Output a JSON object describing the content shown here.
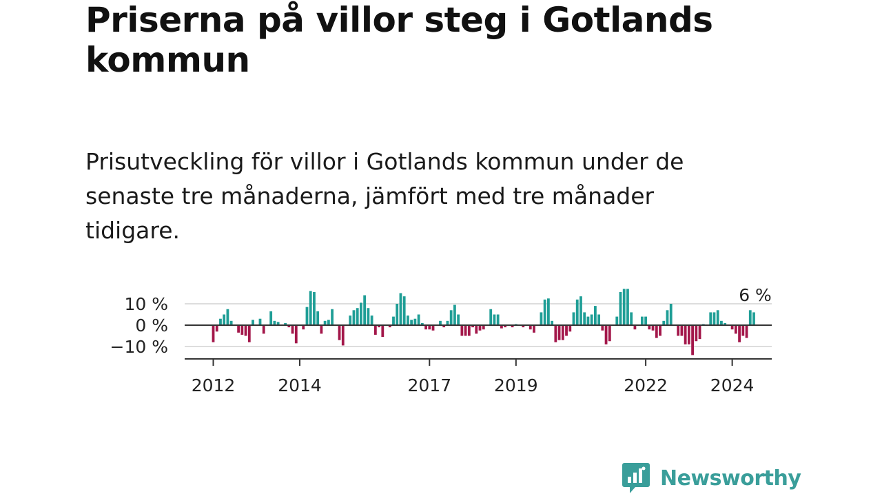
{
  "title": "Priserna på villor steg i Gotlands kommun",
  "subtitle": "Prisutveckling för villor i Gotlands kommun under de senaste tre månaderna, jämfört med tre månader tidigare.",
  "brand": {
    "name": "Newsworthy",
    "color": "#3a9e9a",
    "icon": "bar-chart-speech-bubble-icon"
  },
  "colors": {
    "positive": "#1f9e96",
    "negative": "#a3174a",
    "zero_line": "#333333",
    "grid": "#dddddd"
  },
  "chart_data": {
    "type": "bar",
    "ylabel": "",
    "ylim": [
      -15,
      17
    ],
    "y_ticks": [
      {
        "value": 10,
        "label": "10 %"
      },
      {
        "value": 0,
        "label": "0 %"
      },
      {
        "value": -10,
        "label": "−10 %"
      }
    ],
    "x_ticks": [
      "2012",
      "2014",
      "2017",
      "2019",
      "2022",
      "2024"
    ],
    "x_tick_months": [
      0,
      24,
      60,
      84,
      120,
      144
    ],
    "last_label": "6 %",
    "series": [
      {
        "values": [
          -8,
          -3,
          3,
          5,
          7.5,
          2,
          0,
          -3.5,
          -4.5,
          -5,
          -8,
          2.5,
          0,
          3,
          -4,
          0,
          6.5,
          2,
          1.5,
          0,
          1,
          -1,
          -4,
          -8.5,
          0,
          -2,
          8.5,
          16,
          15.5,
          6.5,
          -4,
          2,
          2.5,
          7.5,
          0,
          -7,
          -9.5,
          0,
          4.5,
          7,
          8,
          10.5,
          14,
          8,
          4.5,
          -4.5,
          -1,
          -5.5,
          0,
          -1,
          4,
          10,
          15,
          13.5,
          4.5,
          2.5,
          3,
          5,
          1,
          -2,
          -2,
          -2.5,
          0,
          2,
          -1,
          2,
          7,
          9.5,
          5,
          -5,
          -5,
          -5,
          -1,
          -4,
          -2.5,
          -2,
          0,
          7.5,
          5,
          5,
          -1.5,
          -1,
          0,
          -1,
          0.5,
          0,
          -1,
          0,
          -2,
          -3.5,
          0,
          6,
          12,
          12.5,
          2,
          -8,
          -7,
          -7,
          -5,
          -3,
          6,
          12,
          13.5,
          6,
          4,
          5,
          9,
          5,
          -2.5,
          -9,
          -7.5,
          0,
          4,
          15.5,
          17,
          17,
          6,
          -2,
          0,
          4,
          4,
          -2,
          -2.5,
          -6,
          -5,
          2,
          7,
          10,
          0,
          -5,
          -5,
          -9,
          -9,
          -14,
          -7.5,
          -6.5,
          0.5,
          0,
          6,
          6,
          7,
          2,
          1,
          0,
          -2,
          -4,
          -8,
          -5,
          -6,
          7,
          6
        ]
      }
    ]
  }
}
